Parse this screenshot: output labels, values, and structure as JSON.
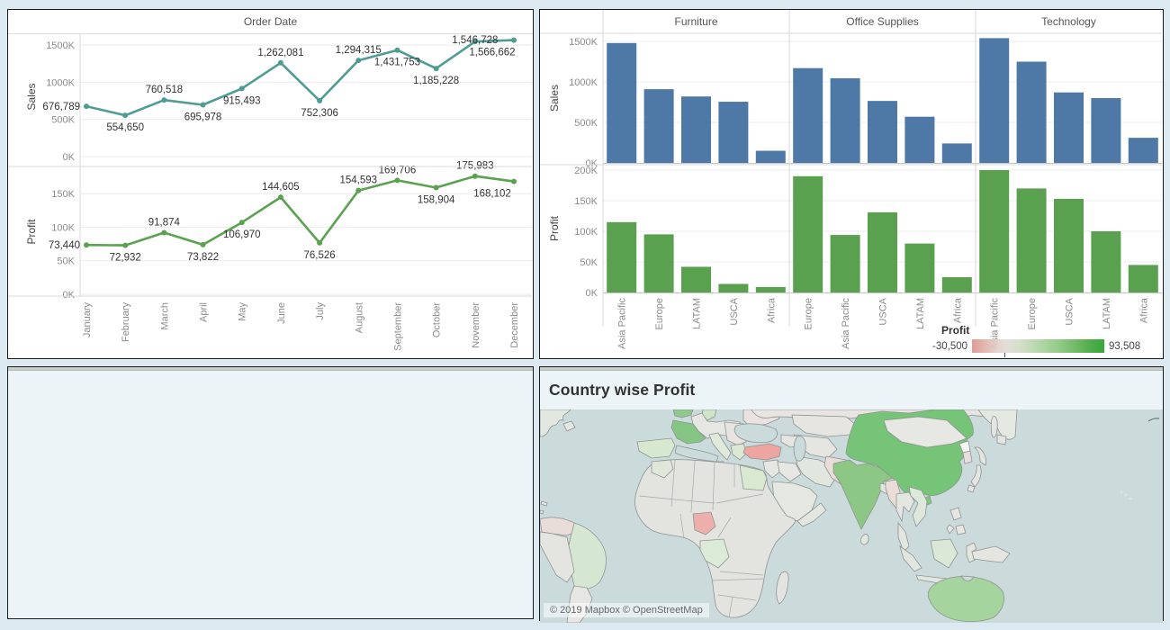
{
  "chart_data": [
    {
      "id": "monthly-trend",
      "type": "line",
      "title": "Order Date",
      "categories": [
        "January",
        "February",
        "March",
        "April",
        "May",
        "June",
        "July",
        "August",
        "September",
        "October",
        "November",
        "December"
      ],
      "series": [
        {
          "name": "Sales",
          "color": "#4e9c94",
          "values": [
            676789,
            554650,
            760518,
            695978,
            915493,
            1262081,
            752306,
            1294315,
            1431753,
            1185228,
            1546728,
            1566662
          ],
          "labels": [
            "676,789",
            "554,650",
            "760,518",
            "695,978",
            "915,493",
            "1,262,081",
            "752,306",
            "1,294,315",
            "1,431,753",
            "1,185,228",
            "1,546,728",
            "1,566,662"
          ],
          "label_pos": [
            "left",
            "below",
            "above",
            "below",
            "below",
            "above",
            "below",
            "above",
            "below",
            "below",
            "above",
            "below"
          ],
          "ticks": [
            "0K",
            "500K",
            "1000K",
            "1500K"
          ],
          "tick_values": [
            0,
            500000,
            1000000,
            1500000
          ],
          "ymax": 1650000
        },
        {
          "name": "Profit",
          "color": "#5aa24f",
          "values": [
            73440,
            72932,
            91874,
            73822,
            106970,
            144605,
            76526,
            154593,
            169706,
            158904,
            175983,
            168102
          ],
          "labels": [
            "73,440",
            "72,932",
            "91,874",
            "73,822",
            "106,970",
            "144,605",
            "76,526",
            "154,593",
            "169,706",
            "158,904",
            "175,983",
            "168,102"
          ],
          "label_pos": [
            "left",
            "below",
            "above",
            "below",
            "below",
            "above",
            "below",
            "above",
            "above",
            "below",
            "above",
            "below"
          ],
          "ticks": [
            "0K",
            "50K",
            "100K",
            "150K"
          ],
          "tick_values": [
            0,
            50000,
            100000,
            150000
          ],
          "ymax": 190000
        }
      ],
      "grid": true,
      "legend_position": "none"
    },
    {
      "id": "category-region-bars",
      "type": "bar",
      "panels": [
        {
          "category": "Furniture",
          "regions": [
            "Asia Pacific",
            "Europe",
            "LATAM",
            "USCA",
            "Africa"
          ],
          "sales": [
            1480000,
            910000,
            820000,
            755000,
            150000
          ],
          "profit": [
            115000,
            95000,
            42000,
            14000,
            9000
          ]
        },
        {
          "category": "Office Supplies",
          "regions": [
            "Europe",
            "Asia Pacific",
            "USCA",
            "LATAM",
            "Africa"
          ],
          "sales": [
            1170000,
            1045000,
            765000,
            570000,
            240000
          ],
          "profit": [
            190000,
            94000,
            131000,
            80000,
            25000
          ]
        },
        {
          "category": "Technology",
          "regions": [
            "Asia Pacific",
            "Europe",
            "USCA",
            "LATAM",
            "Africa"
          ],
          "sales": [
            1540000,
            1250000,
            870000,
            800000,
            310000
          ],
          "profit": [
            200000,
            170000,
            153000,
            100000,
            45000
          ]
        }
      ],
      "rows": [
        {
          "name": "Sales",
          "color": "#4e79a7",
          "ticks": [
            "0K",
            "500K",
            "1000K",
            "1500K"
          ],
          "tick_values": [
            0,
            500000,
            1000000,
            1500000
          ],
          "ymax": 1600000
        },
        {
          "name": "Profit",
          "color": "#59a14f",
          "ticks": [
            "0K",
            "50K",
            "100K",
            "150K",
            "200K"
          ],
          "tick_values": [
            0,
            50000,
            100000,
            150000,
            200000
          ],
          "ymax": 210000
        }
      ],
      "grid": true
    },
    {
      "id": "profit-map",
      "type": "map",
      "title": "Country wise Profit",
      "attribution": "© 2019 Mapbox © OpenStreetMap",
      "legend": {
        "title": "Profit",
        "min_label": "-30,500",
        "max_label": "93,508",
        "min": -30500,
        "max": 93508,
        "negative_color": "#d9948c",
        "positive_color": "#2aa02e",
        "zero_fraction": 0.246
      },
      "ocean_color": "#cbdadb",
      "land_color": "#e3e4e0",
      "country_colors": {
        "canada": "#e2e7e1",
        "caribbean-islands": "#e4e5e1",
        "venezuela-colombia": "#eadcd8",
        "brazil": "#d5e7d0",
        "peru": "#e4e5e1",
        "argentina": "#e6e6e3",
        "united-kingdom": "#8fc98b",
        "denmark": "#cde4c8",
        "central-europe": "#e6e7e3",
        "france": "#84c584",
        "spain": "#d7e8d1",
        "italy": "#e0e9da",
        "balkans": "#e7e4e2",
        "greece": "#d9e7d3",
        "ukraine-romania": "#e9e2e1",
        "russia": "#e8e4e2",
        "russia-far-east": "#e3e8e1",
        "sakhalin": "#e3e6e1",
        "hokkaido": "#e4e5e1",
        "kazakhstan": "#e6e5e2",
        "central-asia": "#e5e5e1",
        "caucasus": "#e4e4e0",
        "turkey": "#eca5a0",
        "levant": "#e6e6e2",
        "iraq": "#e7e6e2",
        "iran": "#e1e7de",
        "saudi-arabia": "#e5e8e0",
        "yemen-oman": "#e4e6e0",
        "pakistan": "#eadcd8",
        "india": "#8cc785",
        "sri-lanka": "#dfe9dc",
        "bangladesh": "#e3e6e0",
        "china": "#76c477",
        "mongolia": "#e7e7e3",
        "north-korea": "#f5f7f5",
        "south-korea": "#eadedd",
        "japan": "#e4e5e1",
        "taiwan": "#7cc67e",
        "myanmar": "#eadcd6",
        "thailand": "#e4e6e1",
        "vietnam": "#dde7da",
        "malay-peninsula": "#e2e6df",
        "sumatra": "#e1e6de",
        "java": "#e2e6df",
        "borneo": "#dbe7d7",
        "sulawesi": "#e3e6e0",
        "lesser-sunda": "#e3e5e1",
        "new-guinea": "#e5e6e2",
        "philippines": "#e6e6e3",
        "australia": "#a5d49e",
        "pacific-islands": "#dfe3de",
        "africa": "#e3e4e0",
        "egypt": "#d8e8d1",
        "nigeria": "#edafab",
        "dr-congo": "#dcead8",
        "morocco": "#dfe8d8",
        "madagascar": "#e3e4e1"
      }
    }
  ]
}
